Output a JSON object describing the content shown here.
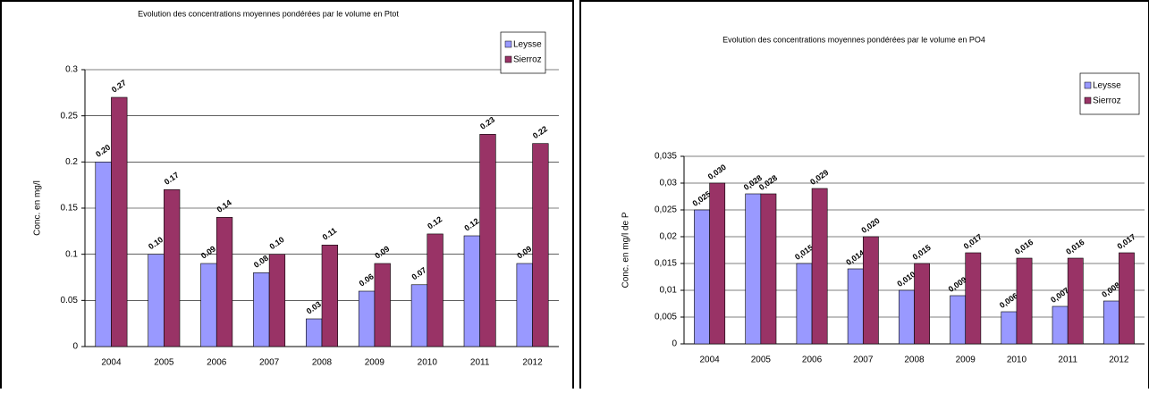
{
  "chart_data": [
    {
      "type": "bar",
      "title": "Evolution des concentrations moyennes pondérées par le volume en Ptot",
      "y_label": "Conc. en mg/l",
      "categories": [
        "2004",
        "2005",
        "2006",
        "2007",
        "2008",
        "2009",
        "2010",
        "2011",
        "2012"
      ],
      "series": [
        {
          "name": "Leysse",
          "color": "#9999ff",
          "values": [
            0.2,
            0.1,
            0.09,
            0.08,
            0.03,
            0.06,
            0.067,
            0.12,
            0.09
          ],
          "value_labels": [
            "0.20",
            "0.10",
            "0.09",
            "0.08",
            "0.03",
            "0.06",
            "0.07",
            "0.12",
            "0.09"
          ]
        },
        {
          "name": "Sierroz",
          "color": "#993366",
          "values": [
            0.27,
            0.17,
            0.14,
            0.1,
            0.11,
            0.09,
            0.122,
            0.23,
            0.22
          ],
          "value_labels": [
            "0.27",
            "0.17",
            "0.14",
            "0.10",
            "0.11",
            "0.09",
            "0.12",
            "0.23",
            "0.22"
          ]
        }
      ],
      "ylim": [
        0,
        0.3
      ],
      "yticks": [
        0,
        0.05,
        0.1,
        0.15,
        0.2,
        0.25,
        0.3
      ],
      "grid": true,
      "legend": "top-right"
    },
    {
      "type": "bar",
      "title": "Evolution des concentrations moyennes pondérées par le volume en PO4",
      "y_label": "Conc. en mg/l de P",
      "categories": [
        "2004",
        "2005",
        "2006",
        "2007",
        "2008",
        "2009",
        "2010",
        "2011",
        "2012"
      ],
      "series": [
        {
          "name": "Leysse",
          "color": "#9999ff",
          "values": [
            0.025,
            0.028,
            0.015,
            0.014,
            0.01,
            0.009,
            0.006,
            0.007,
            0.008
          ],
          "value_labels": [
            "0,025",
            "0,028",
            "0,015",
            "0,014",
            "0,010",
            "0,009",
            "0,006",
            "0,007",
            "0,008"
          ]
        },
        {
          "name": "Sierroz",
          "color": "#993366",
          "values": [
            0.03,
            0.028,
            0.029,
            0.02,
            0.015,
            0.017,
            0.016,
            0.016,
            0.017
          ],
          "value_labels": [
            "0,030",
            "0,028",
            "0,029",
            "0,020",
            "0,015",
            "0,017",
            "0,016",
            "0,016",
            "0,017"
          ]
        }
      ],
      "ylim": [
        0,
        0.035
      ],
      "yticks": [
        0,
        {
          "value": 0.005,
          "label": "0,005"
        },
        {
          "value": 0.01,
          "label": "0,01"
        },
        {
          "value": 0.015,
          "label": "0,015"
        },
        {
          "value": 0.02,
          "label": "0,02"
        },
        {
          "value": 0.025,
          "label": "0,025"
        },
        {
          "value": 0.03,
          "label": "0,03"
        },
        {
          "value": 0.035,
          "label": "0,035"
        }
      ],
      "grid": true,
      "legend": "top-right"
    }
  ]
}
